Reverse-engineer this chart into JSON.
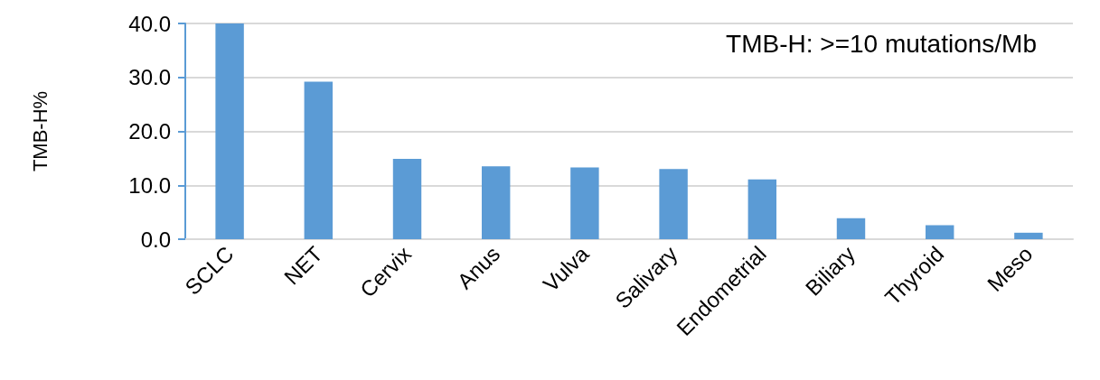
{
  "chart_data": {
    "type": "bar",
    "ylabel": "TMB-H%",
    "annotations": [
      "TMB-H: >=10 mutations/Mb"
    ],
    "categories": [
      "SCLC",
      "NET",
      "Cervix",
      "Anus",
      "Vulva",
      "Salivary",
      "Endometrial",
      "Biliary",
      "Thyroid",
      "Meso"
    ],
    "values": [
      40.0,
      29.2,
      14.9,
      13.5,
      13.3,
      13.0,
      11.1,
      3.9,
      2.6,
      1.2
    ],
    "color": "#5b9bd5",
    "ylim": [
      0,
      40
    ],
    "yticks": [
      {
        "value": 0,
        "label": "0.0"
      },
      {
        "value": 10,
        "label": "10.0"
      },
      {
        "value": 20,
        "label": "20.0"
      },
      {
        "value": 30,
        "label": "30.0"
      },
      {
        "value": 40,
        "label": "40.0"
      }
    ],
    "grid": "y"
  }
}
